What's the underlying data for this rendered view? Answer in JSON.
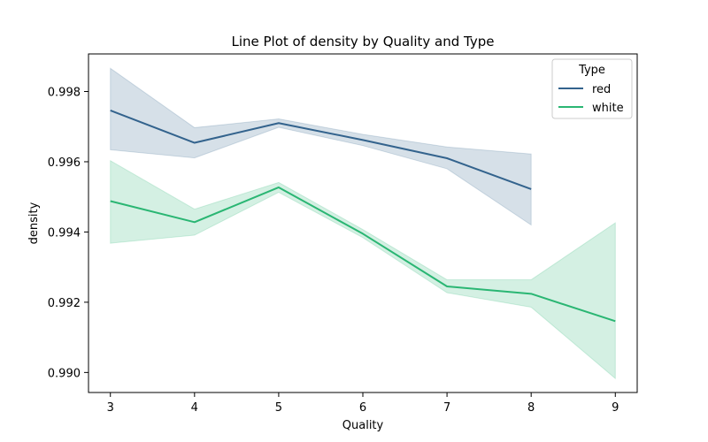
{
  "chart_data": {
    "type": "line",
    "title": "Line Plot of density by Quality and Type",
    "xlabel": "Quality",
    "ylabel": "density",
    "x": [
      3,
      4,
      5,
      6,
      7,
      8,
      9
    ],
    "xlim": [
      2.74,
      9.26
    ],
    "ylim": [
      0.98943,
      0.99907
    ],
    "xticks": [
      "3",
      "4",
      "5",
      "6",
      "7",
      "8",
      "9"
    ],
    "yticks": [
      "0.990",
      "0.992",
      "0.994",
      "0.996",
      "0.998"
    ],
    "ytick_values": [
      0.99,
      0.992,
      0.994,
      0.996,
      0.998
    ],
    "grid": false,
    "legend": {
      "title": "Type",
      "placement": "top-right"
    },
    "series": [
      {
        "name": "red",
        "color": "#33638d",
        "x": [
          3,
          4,
          5,
          6,
          7,
          8
        ],
        "values": [
          0.99746,
          0.99654,
          0.9971,
          0.99662,
          0.9961,
          0.99522
        ],
        "ci_low": [
          0.99634,
          0.99611,
          0.99698,
          0.99646,
          0.9958,
          0.9942
        ],
        "ci_high": [
          0.99866,
          0.99697,
          0.99722,
          0.99678,
          0.99642,
          0.99622
        ]
      },
      {
        "name": "white",
        "color": "#2ab673",
        "x": [
          3,
          4,
          5,
          6,
          7,
          8,
          9
        ],
        "values": [
          0.99488,
          0.99428,
          0.99527,
          0.99395,
          0.99245,
          0.99224,
          0.99146
        ],
        "ci_low": [
          0.99368,
          0.99391,
          0.99513,
          0.99384,
          0.99227,
          0.99186,
          0.98983
        ],
        "ci_high": [
          0.99603,
          0.99465,
          0.99541,
          0.99407,
          0.99264,
          0.99264,
          0.99426
        ]
      }
    ]
  }
}
